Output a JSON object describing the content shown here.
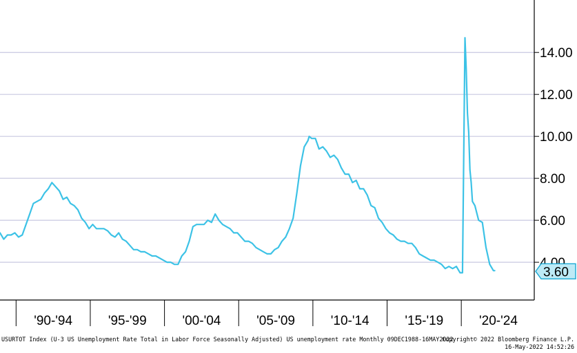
{
  "chart_data": {
    "type": "line",
    "title": "",
    "ylabel": "",
    "xlabel": "",
    "ylim": [
      2.2,
      16.5
    ],
    "xlim": [
      "1988-12",
      "2024-12"
    ],
    "grid": true,
    "line_color": "#3cc2e6",
    "grid_color": "#c8c8e0",
    "y_ticks": [
      {
        "value": 4,
        "label": "4.00"
      },
      {
        "value": 6,
        "label": "6.00"
      },
      {
        "value": 8,
        "label": "8.00"
      },
      {
        "value": 10,
        "label": "10.00"
      },
      {
        "value": 12,
        "label": "12.00"
      },
      {
        "value": 14,
        "label": "14.00"
      }
    ],
    "x_ticks": [
      {
        "at": "1990-01",
        "label": "'90-'94",
        "center": "1992-07"
      },
      {
        "at": "1995-01",
        "label": "'95-'99",
        "center": "1997-07"
      },
      {
        "at": "2000-01",
        "label": "'00-'04",
        "center": "2002-07"
      },
      {
        "at": "2005-01",
        "label": "'05-'09",
        "center": "2007-07"
      },
      {
        "at": "2010-01",
        "label": "'10-'14",
        "center": "2012-07"
      },
      {
        "at": "2015-01",
        "label": "'15-'19",
        "center": "2017-07"
      },
      {
        "at": "2020-01",
        "label": "'20-'24",
        "center": "2022-07"
      }
    ],
    "last_value": {
      "value": 3.6,
      "label": "3.60"
    },
    "series": [
      {
        "x": [
          "1988-12",
          "1989-03",
          "1989-06",
          "1989-09",
          "1989-12",
          "1990-03",
          "1990-06",
          "1990-09",
          "1990-12",
          "1991-03",
          "1991-06",
          "1991-09",
          "1991-12",
          "1992-03",
          "1992-06",
          "1992-09",
          "1992-12",
          "1993-03",
          "1993-06",
          "1993-09",
          "1993-12",
          "1994-03",
          "1994-06",
          "1994-09",
          "1994-12",
          "1995-03",
          "1995-06",
          "1995-09",
          "1995-12",
          "1996-03",
          "1996-06",
          "1996-09",
          "1996-12",
          "1997-03",
          "1997-06",
          "1997-09",
          "1997-12",
          "1998-03",
          "1998-06",
          "1998-09",
          "1998-12",
          "1999-03",
          "1999-06",
          "1999-09",
          "1999-12",
          "2000-03",
          "2000-06",
          "2000-09",
          "2000-12",
          "2001-03",
          "2001-06",
          "2001-09",
          "2001-12",
          "2002-03",
          "2002-06",
          "2002-09",
          "2002-12",
          "2003-03",
          "2003-06",
          "2003-09",
          "2003-12",
          "2004-03",
          "2004-06",
          "2004-09",
          "2004-12",
          "2005-03",
          "2005-06",
          "2005-09",
          "2005-12",
          "2006-03",
          "2006-06",
          "2006-09",
          "2006-12",
          "2007-03",
          "2007-06",
          "2007-09",
          "2007-12",
          "2008-03",
          "2008-06",
          "2008-09",
          "2008-12",
          "2009-03",
          "2009-06",
          "2009-09",
          "2009-10",
          "2009-12",
          "2010-03",
          "2010-06",
          "2010-09",
          "2010-12",
          "2011-03",
          "2011-06",
          "2011-09",
          "2011-12",
          "2012-03",
          "2012-06",
          "2012-09",
          "2012-12",
          "2013-03",
          "2013-06",
          "2013-09",
          "2013-12",
          "2014-03",
          "2014-06",
          "2014-09",
          "2014-12",
          "2015-03",
          "2015-06",
          "2015-09",
          "2015-12",
          "2016-03",
          "2016-06",
          "2016-09",
          "2016-12",
          "2017-03",
          "2017-06",
          "2017-09",
          "2017-12",
          "2018-03",
          "2018-06",
          "2018-09",
          "2018-12",
          "2019-03",
          "2019-06",
          "2019-09",
          "2019-12",
          "2020-02",
          "2020-04",
          "2020-05",
          "2020-06",
          "2020-07",
          "2020-08",
          "2020-09",
          "2020-10",
          "2020-12",
          "2021-03",
          "2021-06",
          "2021-09",
          "2021-12",
          "2022-03",
          "2022-04"
        ],
        "y": [
          5.4,
          5.1,
          5.3,
          5.3,
          5.4,
          5.2,
          5.3,
          5.8,
          6.3,
          6.8,
          6.9,
          7.0,
          7.3,
          7.5,
          7.8,
          7.6,
          7.4,
          7.0,
          7.1,
          6.8,
          6.7,
          6.5,
          6.1,
          5.9,
          5.6,
          5.8,
          5.6,
          5.6,
          5.6,
          5.5,
          5.3,
          5.2,
          5.4,
          5.1,
          5.0,
          4.8,
          4.6,
          4.6,
          4.5,
          4.5,
          4.4,
          4.3,
          4.3,
          4.2,
          4.1,
          4.0,
          4.0,
          3.9,
          3.9,
          4.3,
          4.5,
          5.0,
          5.7,
          5.8,
          5.8,
          5.8,
          6.0,
          5.9,
          6.3,
          6.0,
          5.8,
          5.7,
          5.6,
          5.4,
          5.4,
          5.2,
          5.0,
          5.0,
          4.9,
          4.7,
          4.6,
          4.5,
          4.4,
          4.4,
          4.6,
          4.7,
          5.0,
          5.2,
          5.6,
          6.1,
          7.3,
          8.6,
          9.5,
          9.8,
          10.0,
          9.9,
          9.9,
          9.4,
          9.5,
          9.3,
          9.0,
          9.1,
          8.9,
          8.5,
          8.2,
          8.2,
          7.8,
          7.9,
          7.5,
          7.5,
          7.2,
          6.7,
          6.6,
          6.1,
          5.9,
          5.6,
          5.4,
          5.3,
          5.1,
          5.0,
          5.0,
          4.9,
          4.9,
          4.7,
          4.4,
          4.3,
          4.2,
          4.1,
          4.1,
          4.0,
          3.9,
          3.7,
          3.8,
          3.7,
          3.8,
          3.5,
          3.5,
          14.7,
          13.2,
          11.1,
          10.2,
          8.4,
          7.8,
          6.9,
          6.7,
          6.0,
          5.9,
          4.7,
          3.9,
          3.6,
          3.6
        ]
      }
    ]
  },
  "footer": {
    "description": "USURTOT Index (U-3 US Unemployment Rate Total in Labor Force Seasonally Adjusted) US unemployment rate  Monthly 09DEC1988-16MAY2022",
    "copyright": "Copyright© 2022 Bloomberg Finance L.P.",
    "timestamp": "16-May-2022 14:52:26"
  }
}
